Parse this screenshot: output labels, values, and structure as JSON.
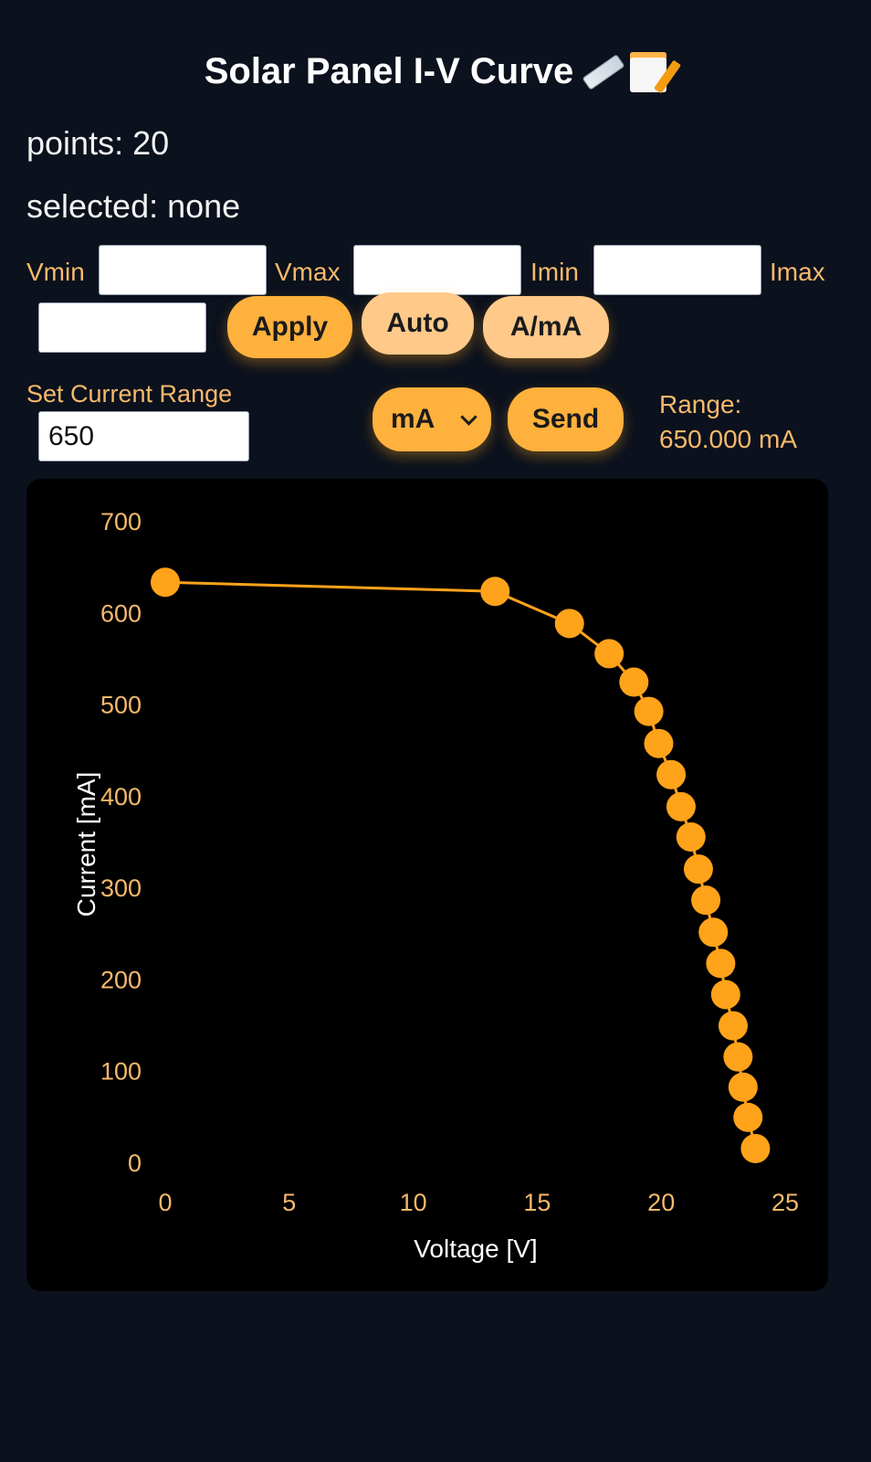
{
  "header": {
    "title": "Solar Panel I-V Curve",
    "icons": [
      "ruler-icon",
      "memo-icon"
    ]
  },
  "status": {
    "points": "points: 20",
    "selected": "selected: none"
  },
  "limits": {
    "vmin_label": "Vmin",
    "vmax_label": "Vmax",
    "imin_label": "Imin",
    "imax_label": "Imax",
    "vmin_value": "",
    "vmax_value": "",
    "imin_value": "",
    "imax_value": ""
  },
  "buttons": {
    "apply": "Apply",
    "auto": "Auto",
    "unit_toggle": "A/mA",
    "send": "Send"
  },
  "current_range": {
    "label": "Set Current Range",
    "value": "650",
    "unit_selected": "mA",
    "range_label": "Range:",
    "range_value": "650.000 mA"
  },
  "colors": {
    "accent": "#ffa31a",
    "page_bg": "#0b111d",
    "plot_bg": "#000000",
    "tick_text": "#f6b96b"
  },
  "chart_data": {
    "type": "line",
    "xlabel": "Voltage [V]",
    "ylabel": "Current [mA]",
    "xlim": [
      0,
      25
    ],
    "ylim": [
      0,
      700
    ],
    "xticks": [
      "0",
      "5",
      "10",
      "15",
      "20",
      "25"
    ],
    "yticks": [
      "0",
      "100",
      "200",
      "300",
      "400",
      "500",
      "600",
      "700"
    ],
    "grid": false,
    "series": [
      {
        "points": [
          [
            0.0,
            633
          ],
          [
            13.3,
            623
          ],
          [
            16.3,
            588
          ],
          [
            17.9,
            555
          ],
          [
            18.9,
            524
          ],
          [
            19.5,
            492
          ],
          [
            19.9,
            457
          ],
          [
            20.4,
            423
          ],
          [
            20.8,
            388
          ],
          [
            21.2,
            355
          ],
          [
            21.5,
            320
          ],
          [
            21.8,
            286
          ],
          [
            22.1,
            251
          ],
          [
            22.4,
            217
          ],
          [
            22.6,
            183
          ],
          [
            22.9,
            149
          ],
          [
            23.1,
            115
          ],
          [
            23.3,
            82
          ],
          [
            23.5,
            49
          ],
          [
            23.8,
            15
          ]
        ]
      }
    ]
  }
}
